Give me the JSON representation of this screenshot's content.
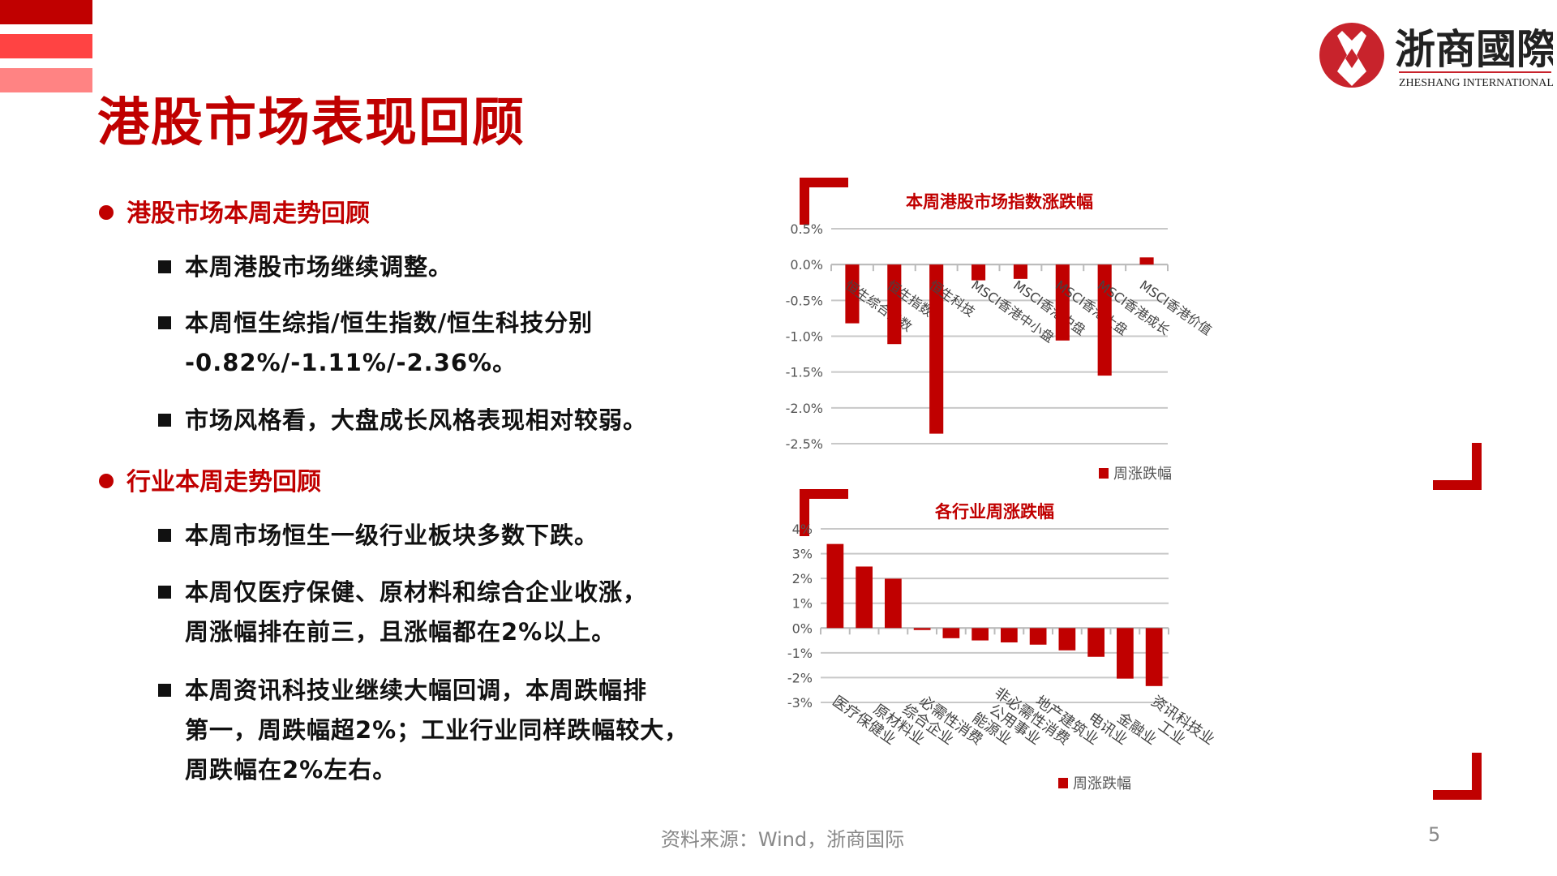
{
  "title": "港股市场表现回顾",
  "brand": {
    "name_cn": "浙商國際",
    "name_en": "ZHESHANG INTERNATIONAL",
    "color": "#c00000"
  },
  "sections": [
    {
      "heading": "港股市场本周走势回顾",
      "items": [
        {
          "lines": [
            "本周港股市场继续调整。"
          ]
        },
        {
          "lines": [
            "本周恒生综指/恒生指数/恒生科技分别",
            "-0.82%/-1.11%/-2.36%。"
          ]
        },
        {
          "lines": [
            "市场风格看，大盘成长风格表现相对较弱。"
          ]
        }
      ]
    },
    {
      "heading": "行业本周走势回顾",
      "items": [
        {
          "lines": [
            "本周市场恒生一级行业板块多数下跌。"
          ]
        },
        {
          "lines": [
            "本周仅医疗保健、原材料和综合企业收涨，",
            "周涨幅排在前三，且涨幅都在2%以上。"
          ]
        },
        {
          "lines": [
            "本周资讯科技业继续大幅回调，本周跌幅排",
            "第一，周跌幅超2%；工业行业同样跌幅较大，",
            "周跌幅在2%左右。"
          ]
        }
      ]
    }
  ],
  "footer": {
    "source": "资料来源：Wind，浙商国际",
    "page": "5"
  },
  "chart_data": [
    {
      "type": "bar",
      "title": "本周港股市场指数涨跌幅",
      "categories": [
        "恒生综合指数",
        "恒生指数",
        "恒生科技",
        "MSCI香港中小盘",
        "MSCI香港中盘",
        "MSCI香港大盘",
        "MSCI香港成长",
        "MSCI香港价值"
      ],
      "series": [
        {
          "name": "周涨跌幅",
          "values": [
            -0.82,
            -1.11,
            -2.36,
            -0.22,
            -0.2,
            -1.06,
            -1.55,
            0.1
          ]
        }
      ],
      "ylim": [
        -2.5,
        0.5
      ],
      "yticks": [
        0.5,
        0,
        -0.5,
        -1.0,
        -1.5,
        -2.0,
        -2.5
      ],
      "ytick_labels": [
        "0.5%",
        "0.0%",
        "-0.5%",
        "-1.0%",
        "-1.5%",
        "-2.0%",
        "-2.5%"
      ],
      "grid": true,
      "legend": "bottom",
      "color": "#c00000"
    },
    {
      "type": "bar",
      "title": "各行业周涨跌幅",
      "categories": [
        "医疗保健业",
        "原材料业",
        "综合企业",
        "必需性消费",
        "能源业",
        "公用事业",
        "非必需性消费",
        "地产建筑业",
        "电讯业",
        "金融业",
        "工业",
        "资讯科技业"
      ],
      "series": [
        {
          "name": "周涨跌幅",
          "values": [
            3.39,
            2.48,
            1.99,
            -0.08,
            -0.41,
            -0.5,
            -0.58,
            -0.67,
            -0.9,
            -1.16,
            -2.04,
            -2.34
          ]
        }
      ],
      "ylim": [
        -3,
        4
      ],
      "yticks": [
        4,
        3,
        2,
        1,
        0,
        -1,
        -2,
        -3
      ],
      "ytick_labels": [
        "4%",
        "3%",
        "2%",
        "1%",
        "0%",
        "-1%",
        "-2%",
        "-3%"
      ],
      "grid": true,
      "legend": "bottom",
      "color": "#c00000"
    }
  ]
}
